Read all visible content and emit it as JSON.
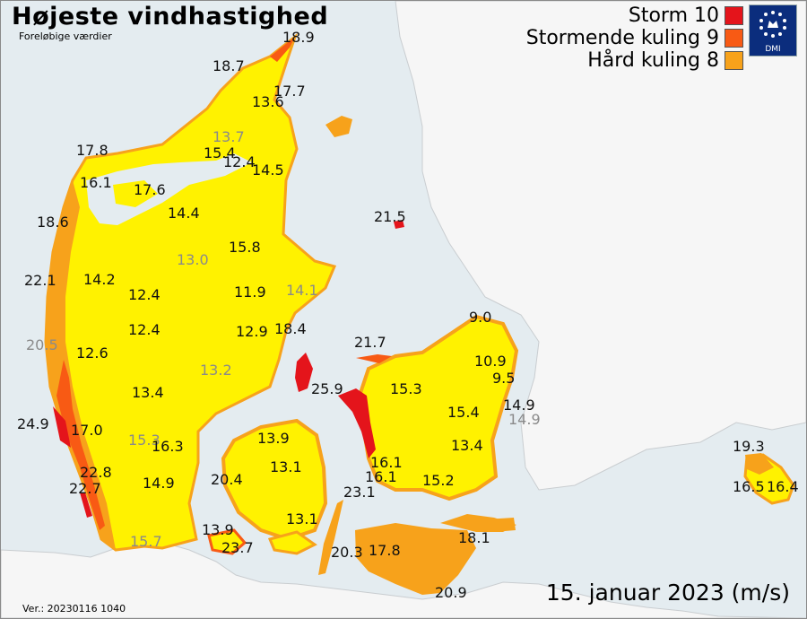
{
  "title": "Højeste vindhastighed",
  "subtitle": "Foreløbige værdier",
  "legend": [
    {
      "label": "Storm 10",
      "color": "#e4141b"
    },
    {
      "label": "Stormende kuling 9",
      "color": "#f85a14"
    },
    {
      "label": "Hård kuling 8",
      "color": "#f7a21b"
    }
  ],
  "fill_colors": {
    "sea": "#e4ecf0",
    "foreign_land": "#f6f6f6",
    "below_threshold": "#fff200",
    "label_dark": "#111111",
    "label_grey": "#8a8a8a"
  },
  "logo": {
    "text": "DMI",
    "icon": "crown-stars-icon"
  },
  "date_label": "15. januar 2023 (m/s)",
  "version": "Ver.: 20230116 1040",
  "stations": [
    {
      "value": "18.9",
      "grey": false
    },
    {
      "value": "18.7",
      "grey": false
    },
    {
      "value": "17.7",
      "grey": false
    },
    {
      "value": "13.6",
      "grey": false
    },
    {
      "value": "13.7",
      "grey": true
    },
    {
      "value": "15.4",
      "grey": false
    },
    {
      "value": "12.4",
      "grey": false
    },
    {
      "value": "14.5",
      "grey": false
    },
    {
      "value": "17.8",
      "grey": false
    },
    {
      "value": "16.1",
      "grey": false
    },
    {
      "value": "17.6",
      "grey": false
    },
    {
      "value": "14.4",
      "grey": false
    },
    {
      "value": "21.5",
      "grey": false
    },
    {
      "value": "18.6",
      "grey": false
    },
    {
      "value": "15.8",
      "grey": false
    },
    {
      "value": "13.0",
      "grey": true
    },
    {
      "value": "22.1",
      "grey": false
    },
    {
      "value": "14.2",
      "grey": false
    },
    {
      "value": "12.4",
      "grey": false
    },
    {
      "value": "11.9",
      "grey": false
    },
    {
      "value": "14.1",
      "grey": true
    },
    {
      "value": "9.0",
      "grey": false
    },
    {
      "value": "12.4",
      "grey": false
    },
    {
      "value": "12.9",
      "grey": false
    },
    {
      "value": "18.4",
      "grey": false
    },
    {
      "value": "20.5",
      "grey": true
    },
    {
      "value": "21.7",
      "grey": false
    },
    {
      "value": "12.6",
      "grey": false
    },
    {
      "value": "10.9",
      "grey": false
    },
    {
      "value": "13.2",
      "grey": true
    },
    {
      "value": "9.5",
      "grey": false
    },
    {
      "value": "13.4",
      "grey": false
    },
    {
      "value": "25.9",
      "grey": false
    },
    {
      "value": "15.3",
      "grey": false
    },
    {
      "value": "14.9",
      "grey": false
    },
    {
      "value": "15.4",
      "grey": false
    },
    {
      "value": "14.9",
      "grey": true
    },
    {
      "value": "24.9",
      "grey": false
    },
    {
      "value": "17.0",
      "grey": false
    },
    {
      "value": "15.3",
      "grey": true
    },
    {
      "value": "16.3",
      "grey": false
    },
    {
      "value": "13.9",
      "grey": false
    },
    {
      "value": "13.4",
      "grey": false
    },
    {
      "value": "19.3",
      "grey": false
    },
    {
      "value": "22.8",
      "grey": false
    },
    {
      "value": "13.1",
      "grey": false
    },
    {
      "value": "16.1",
      "grey": false
    },
    {
      "value": "16.1",
      "grey": false
    },
    {
      "value": "15.2",
      "grey": false
    },
    {
      "value": "22.7",
      "grey": false
    },
    {
      "value": "14.9",
      "grey": false
    },
    {
      "value": "20.4",
      "grey": false
    },
    {
      "value": "23.1",
      "grey": false
    },
    {
      "value": "16.5",
      "grey": false
    },
    {
      "value": "16.4",
      "grey": false
    },
    {
      "value": "13.1",
      "grey": false
    },
    {
      "value": "13.9",
      "grey": false
    },
    {
      "value": "18.1",
      "grey": false
    },
    {
      "value": "15.7",
      "grey": true
    },
    {
      "value": "23.7",
      "grey": false
    },
    {
      "value": "20.3",
      "grey": false
    },
    {
      "value": "17.8",
      "grey": false
    },
    {
      "value": "20.9",
      "grey": false
    }
  ]
}
